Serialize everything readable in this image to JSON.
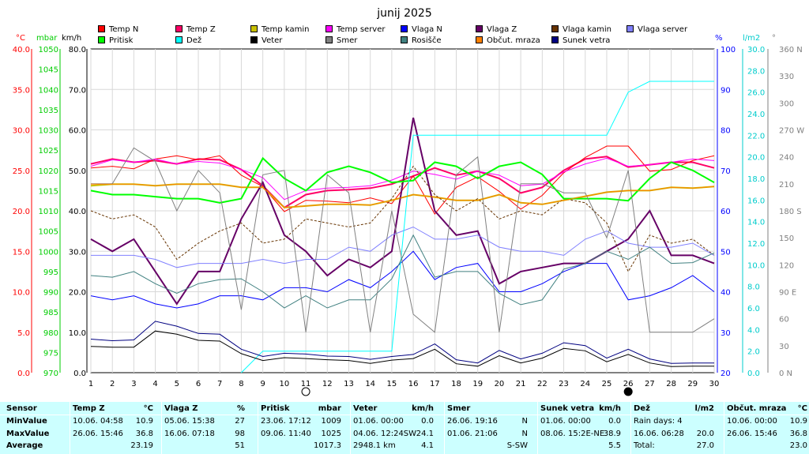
{
  "title": "junij 2025",
  "unit_headers": {
    "temp": "°C",
    "press": "mbar",
    "speed": "km/h",
    "pct": "%",
    "rain": "l/m2",
    "deg": "°"
  },
  "legend": [
    {
      "label": "Temp N",
      "color": "#ff0000"
    },
    {
      "label": "Temp Z",
      "color": "#ff0066"
    },
    {
      "label": "Temp kamin",
      "color": "#c8c000"
    },
    {
      "label": "Temp server",
      "color": "#ff00ff"
    },
    {
      "label": "Vlaga N",
      "color": "#0000ff"
    },
    {
      "label": "Vlaga Z",
      "color": "#660066"
    },
    {
      "label": "Vlaga kamin",
      "color": "#663300"
    },
    {
      "label": "Vlaga server",
      "color": "#8080ff"
    },
    {
      "label": "Pritisk",
      "color": "#00ff00"
    },
    {
      "label": "Dež",
      "color": "#00ffff"
    },
    {
      "label": "Veter",
      "color": "#000000"
    },
    {
      "label": "Smer",
      "color": "#808080"
    },
    {
      "label": "Rosišče",
      "color": "#408080"
    },
    {
      "label": "Občut. mraza",
      "color": "#ff8000"
    },
    {
      "label": "Sunek vetra",
      "color": "#000080"
    }
  ],
  "chart_data": {
    "type": "line",
    "title": "junij 2025",
    "x": [
      1,
      2,
      3,
      4,
      5,
      6,
      7,
      8,
      9,
      10,
      11,
      12,
      13,
      14,
      15,
      16,
      17,
      18,
      19,
      20,
      21,
      22,
      23,
      24,
      25,
      26,
      27,
      28,
      29,
      30
    ],
    "axes": {
      "temp": {
        "label": "°C",
        "range": [
          0,
          40
        ],
        "ticks": [
          "0.0",
          "5.0",
          "10.0",
          "15.0",
          "20.0",
          "25.0",
          "30.0",
          "35.0",
          "40.0"
        ]
      },
      "pressure": {
        "label": "mbar",
        "range": [
          970,
          1050
        ],
        "ticks": [
          "970",
          "975",
          "980",
          "985",
          "990",
          "995",
          "1000",
          "1005",
          "1010",
          "1015",
          "1020",
          "1025",
          "1030",
          "1035",
          "1040",
          "1045",
          "1050"
        ]
      },
      "speed": {
        "label": "km/h",
        "range": [
          0,
          80
        ],
        "ticks": [
          "0.0",
          "10.0",
          "20.0",
          "30.0",
          "40.0",
          "50.0",
          "60.0",
          "70.0",
          "80.0"
        ]
      },
      "humidity": {
        "label": "%",
        "range": [
          20,
          100
        ],
        "ticks": [
          "20",
          "30",
          "40",
          "50",
          "60",
          "70",
          "80",
          "90",
          "100"
        ]
      },
      "rain": {
        "label": "l/m2",
        "range": [
          0,
          30
        ],
        "ticks": [
          "0.0",
          "2.0",
          "4.0",
          "6.0",
          "8.0",
          "10.0",
          "12.0",
          "14.0",
          "16.0",
          "18.0",
          "20.0",
          "22.0",
          "24.0",
          "26.0",
          "28.0",
          "30.0"
        ]
      },
      "direction": {
        "label": "°",
        "range": [
          0,
          360
        ],
        "ticks": [
          "0 N",
          "30",
          "60",
          "90 E",
          "120",
          "150",
          "180 S",
          "210",
          "240",
          "270 W",
          "300",
          "330",
          "360 N"
        ]
      }
    },
    "series": [
      {
        "name": "Temp Z",
        "axis": "temp",
        "color": "#ff0066",
        "values": [
          25.8,
          26.4,
          26.0,
          26.2,
          25.8,
          26.4,
          26.3,
          25.1,
          23.1,
          20.4,
          22.0,
          22.5,
          22.6,
          22.8,
          23.3,
          24.3,
          25.3,
          24.4,
          24.9,
          24.0,
          22.2,
          22.9,
          25.0,
          26.4,
          26.7,
          25.4,
          25.7,
          26.0,
          26.0,
          25.3
        ]
      },
      {
        "name": "Temp N",
        "axis": "temp",
        "color": "#ff0000",
        "values": [
          25.3,
          25.5,
          25.2,
          26.4,
          26.8,
          26.3,
          26.8,
          24.4,
          23.0,
          19.9,
          21.3,
          21.2,
          21.0,
          21.6,
          20.9,
          24.3,
          19.6,
          22.9,
          24.2,
          22.4,
          20.2,
          21.9,
          24.7,
          26.6,
          28.0,
          28.0,
          24.9,
          25.1,
          26.2,
          26.8
        ]
      },
      {
        "name": "Temp kamin",
        "axis": "temp",
        "color": "#c8c000",
        "values": [
          23.1,
          23.3,
          23.3,
          23.1,
          23.3,
          23.3,
          23.3,
          22.9,
          22.9,
          20.4,
          20.6,
          20.8,
          20.8,
          20.7,
          21.3,
          22.0,
          21.7,
          21.3,
          21.3,
          22.0,
          21.0,
          20.8,
          21.3,
          21.8,
          22.3,
          22.5,
          22.5,
          22.9,
          22.8,
          23.0
        ]
      },
      {
        "name": "Temp server",
        "axis": "temp",
        "color": "#ff00ff",
        "values": [
          25.5,
          26.3,
          26.0,
          26.4,
          25.8,
          26.1,
          25.9,
          25.1,
          24.1,
          21.4,
          22.5,
          22.8,
          22.9,
          23.1,
          23.8,
          24.9,
          24.5,
          23.9,
          24.9,
          24.4,
          23.1,
          23.3,
          24.8,
          25.8,
          26.5,
          25.5,
          25.7,
          26.0,
          26.4,
          26.2
        ]
      },
      {
        "name": "Vlaga Z",
        "axis": "humidity",
        "color": "#660066",
        "values": [
          53,
          50,
          53,
          45,
          37,
          45,
          45,
          58,
          67,
          54,
          50,
          44,
          48,
          46,
          50,
          83,
          60,
          54,
          55,
          42,
          45,
          46,
          47,
          47,
          50,
          53,
          60,
          49,
          49,
          47
        ]
      },
      {
        "name": "Vlaga N",
        "axis": "humidity",
        "color": "#0000ff",
        "values": [
          39,
          38,
          39,
          37,
          36,
          37,
          39,
          39,
          38,
          41,
          41,
          40,
          43,
          41,
          45,
          50,
          43,
          46,
          47,
          40,
          40,
          42,
          45,
          47,
          47,
          38,
          39,
          41,
          44,
          40
        ]
      },
      {
        "name": "Vlaga kamin",
        "axis": "humidity",
        "color": "#663300",
        "values": [
          60,
          58,
          59,
          56,
          48,
          52,
          55,
          57,
          52,
          53,
          58,
          57,
          56,
          57,
          63,
          71,
          64,
          60,
          63,
          58,
          60,
          59,
          63,
          62,
          57,
          45,
          54,
          52,
          53,
          49
        ]
      },
      {
        "name": "Vlaga server",
        "axis": "humidity",
        "color": "#8080ff",
        "values": [
          49,
          49,
          49,
          48,
          46,
          47,
          47,
          47,
          48,
          47,
          48,
          48,
          51,
          50,
          54,
          56,
          53,
          53,
          54,
          51,
          50,
          50,
          49,
          53,
          55,
          52,
          51,
          51,
          52,
          49
        ]
      },
      {
        "name": "Pritisk",
        "axis": "pressure",
        "color": "#00ff00",
        "values": [
          1015,
          1014,
          1014,
          1013.5,
          1013,
          1013,
          1012,
          1013,
          1023,
          1018,
          1015,
          1019.5,
          1021,
          1019.5,
          1017,
          1017.5,
          1022,
          1021,
          1018,
          1021,
          1022,
          1019,
          1013,
          1013,
          1013,
          1012.5,
          1018,
          1022,
          1020,
          1017
        ]
      },
      {
        "name": "Dež",
        "axis": "rain",
        "color": "#00ffff",
        "values": [
          null,
          null,
          null,
          null,
          null,
          null,
          null,
          0,
          2,
          2,
          2,
          2,
          2,
          2,
          2,
          22,
          22,
          22,
          22,
          22,
          22,
          22,
          22,
          22,
          22,
          26,
          27,
          27,
          27,
          27
        ]
      },
      {
        "name": "Veter",
        "axis": "speed",
        "color": "#000000",
        "values": [
          6.5,
          6.3,
          6.3,
          10.3,
          9.5,
          8.0,
          7.8,
          4.7,
          3.0,
          3.7,
          3.5,
          3.2,
          3.0,
          2.3,
          3.1,
          3.5,
          5.8,
          2.2,
          1.6,
          4.2,
          2.4,
          3.6,
          6.0,
          5.4,
          2.7,
          4.5,
          2.4,
          1.5,
          1.6,
          1.6
        ]
      },
      {
        "name": "Sunek vetra",
        "axis": "speed",
        "color": "#000080",
        "values": [
          8.3,
          7.9,
          8.1,
          12.7,
          11.5,
          9.7,
          9.5,
          5.8,
          4.0,
          4.8,
          4.6,
          4.1,
          4.0,
          3.3,
          4.0,
          4.5,
          7.1,
          3.2,
          2.4,
          5.5,
          3.4,
          4.8,
          7.4,
          6.7,
          3.6,
          5.8,
          3.4,
          2.3,
          2.4,
          2.4
        ]
      },
      {
        "name": "Rosišče",
        "axis": "temp",
        "color": "#408080",
        "values": [
          12.0,
          11.8,
          12.5,
          11.0,
          9.8,
          11.0,
          11.5,
          11.6,
          10.0,
          8.0,
          9.5,
          8.0,
          9.0,
          9.0,
          11.6,
          17.0,
          11.8,
          12.5,
          12.5,
          9.8,
          8.4,
          9.0,
          12.8,
          13.5,
          15.0,
          14.0,
          15.5,
          13.5,
          13.6,
          14.8
        ]
      },
      {
        "name": "Smer",
        "axis": "direction",
        "color": "#808080",
        "values": [
          210,
          210,
          250,
          235,
          180,
          225,
          200,
          70,
          220,
          225,
          45,
          220,
          200,
          45,
          180,
          65,
          45,
          220,
          240,
          45,
          210,
          210,
          200,
          200,
          150,
          225,
          45,
          45,
          45,
          60
        ]
      },
      {
        "name": "Občut. mraza",
        "axis": "temp",
        "color": "#ff8000",
        "values": [
          23.3,
          23.3,
          23.3,
          23.1,
          23.3,
          23.3,
          23.3,
          22.9,
          22.9,
          20.4,
          20.6,
          20.8,
          20.8,
          20.7,
          21.3,
          22.0,
          21.7,
          21.3,
          21.3,
          22.0,
          21.0,
          20.8,
          21.3,
          21.8,
          22.3,
          22.5,
          22.5,
          22.9,
          22.8,
          23.0
        ]
      }
    ],
    "moon_phase_days": {
      "new": 11,
      "full": 26
    }
  },
  "stats": {
    "row_labels": [
      "Sensor",
      "MinValue",
      "MaxValue",
      "Average"
    ],
    "columns": [
      {
        "title": "Temp Z",
        "unit": "°C",
        "min_date": "10.06. 04:58",
        "min_val": "10.9",
        "max_date": "26.06. 15:46",
        "max_val": "36.8",
        "avg_extra": "",
        "avg": "23.19"
      },
      {
        "title": "Vlaga Z",
        "unit": "%",
        "min_date": "05.06. 15:38",
        "min_val": "27",
        "max_date": "16.06. 07:18",
        "max_val": "98",
        "avg_extra": "",
        "avg": "51"
      },
      {
        "title": "Pritisk",
        "unit": "mbar",
        "min_date": "23.06. 17:12",
        "min_val": "1009",
        "max_date": "09.06. 11:40",
        "max_val": "1025",
        "avg_extra": "",
        "avg": "1017.3"
      },
      {
        "title": "Veter",
        "unit": "km/h",
        "min_date": "01.06. 00:00",
        "min_val": "0.0",
        "max_date": "04.06. 12:24SW",
        "max_val": "24.1",
        "avg_extra": "2948.1 km",
        "avg": "4.1"
      },
      {
        "title": "Smer",
        "unit": "",
        "min_date": "26.06. 19:16",
        "min_val": "N",
        "max_date": "01.06. 21:06",
        "max_val": "N",
        "avg_extra": "",
        "avg": "S-SW"
      },
      {
        "title": "Sunek vetra",
        "unit": "km/h",
        "min_date": "01.06. 00:00",
        "min_val": "0.0",
        "max_date": "08.06. 15:2E-NE",
        "max_val": "38.9",
        "avg_extra": "",
        "avg": "5.5"
      },
      {
        "title": "Dež",
        "unit": "l/m2",
        "min_date": "Rain days: 4",
        "min_val": "",
        "max_date": "16.06. 06:28",
        "max_val": "20.0",
        "avg_extra": "Total:",
        "avg": "27.0"
      },
      {
        "title": "Občut. mraza",
        "unit": "°C",
        "min_date": "10.06. 00:00",
        "min_val": "10.9",
        "max_date": "26.06. 15:46",
        "max_val": "36.8",
        "avg_extra": "",
        "avg": "23.0"
      }
    ]
  }
}
